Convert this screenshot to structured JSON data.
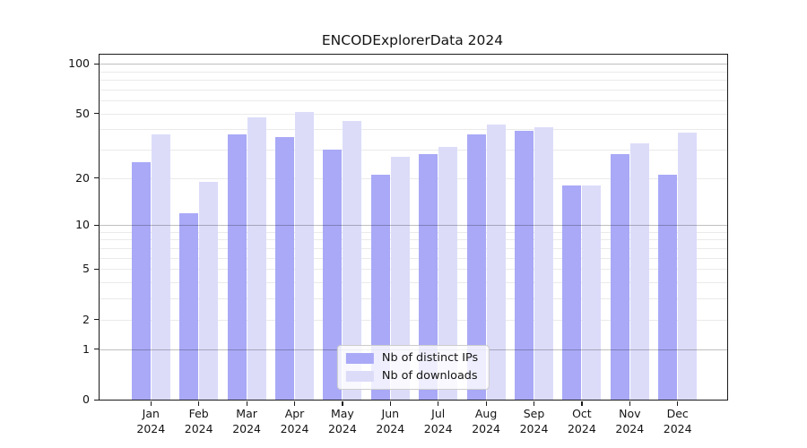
{
  "title": "ENCODExplorerData 2024",
  "chart_data": {
    "type": "bar",
    "title": "ENCODExplorerData 2024",
    "categories": [
      "Jan",
      "Feb",
      "Mar",
      "Apr",
      "May",
      "Jun",
      "Jul",
      "Aug",
      "Sep",
      "Oct",
      "Nov",
      "Dec"
    ],
    "year_label": "2024",
    "series": [
      {
        "name": "Nb of distinct IPs",
        "color": "#a9a9f7",
        "values": [
          25,
          12,
          37,
          36,
          30,
          21,
          28,
          37,
          39,
          18,
          28,
          21
        ]
      },
      {
        "name": "Nb of downloads",
        "color": "#dcdcf9",
        "values": [
          37,
          19,
          47,
          51,
          45,
          27,
          31,
          43,
          41,
          18,
          33,
          38
        ]
      }
    ],
    "xlabel": "",
    "ylabel": "",
    "y_axis": {
      "scale": "log10(1+value)",
      "ticks": [
        100,
        50,
        20,
        10,
        5,
        2,
        1,
        0
      ],
      "max": 113.3
    },
    "gridlines": {
      "minor": [
        2,
        3,
        4,
        5,
        6,
        7,
        8,
        9,
        20,
        30,
        40,
        50,
        60,
        70,
        80,
        90
      ],
      "decade": [
        1,
        10,
        100
      ],
      "grid": "on"
    },
    "legend": {
      "position": "bottom-center-inside"
    }
  }
}
